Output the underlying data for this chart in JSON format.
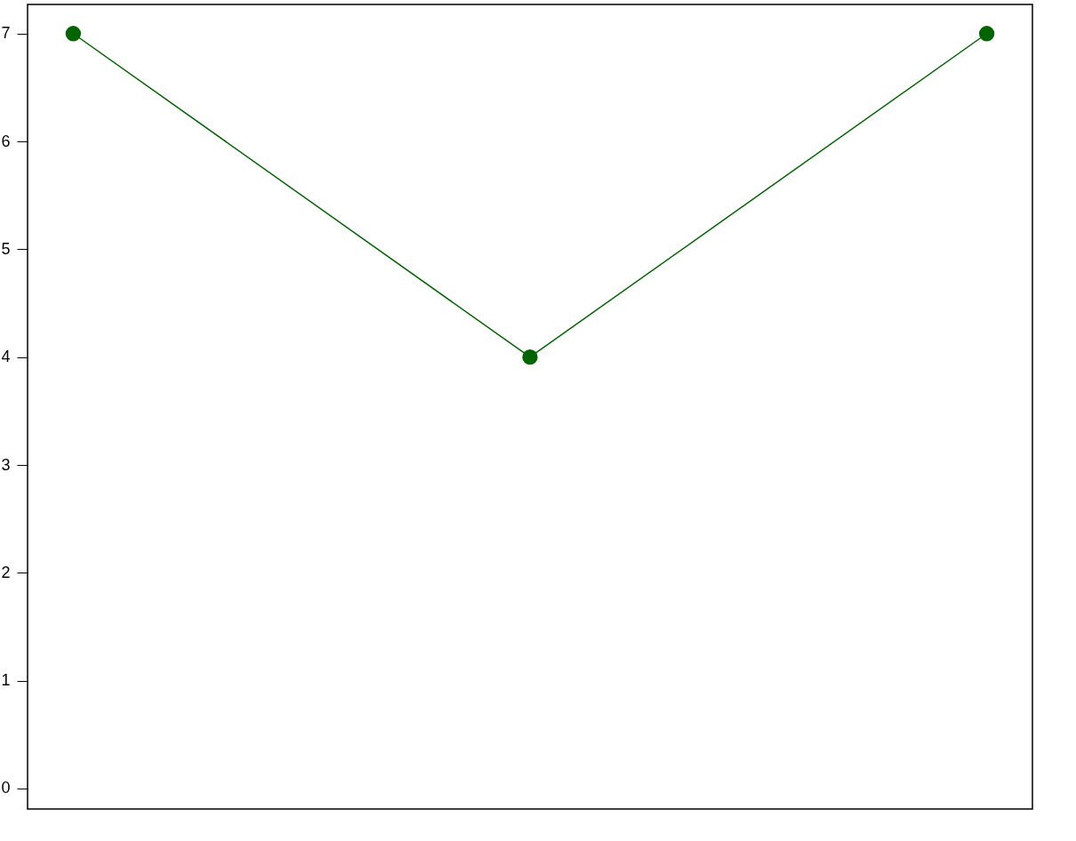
{
  "chart_data": {
    "type": "line",
    "categories": [
      null,
      null,
      null
    ],
    "series": [
      {
        "color": "#006400",
        "values": [
          7,
          4,
          7
        ]
      }
    ],
    "ylim": [
      -0.19,
      7.27
    ],
    "yticks": [
      0,
      1,
      2,
      3,
      4,
      5,
      6,
      7
    ],
    "grid": false,
    "marker": "circle",
    "line_style": "solid",
    "tick_labels": "y"
  }
}
